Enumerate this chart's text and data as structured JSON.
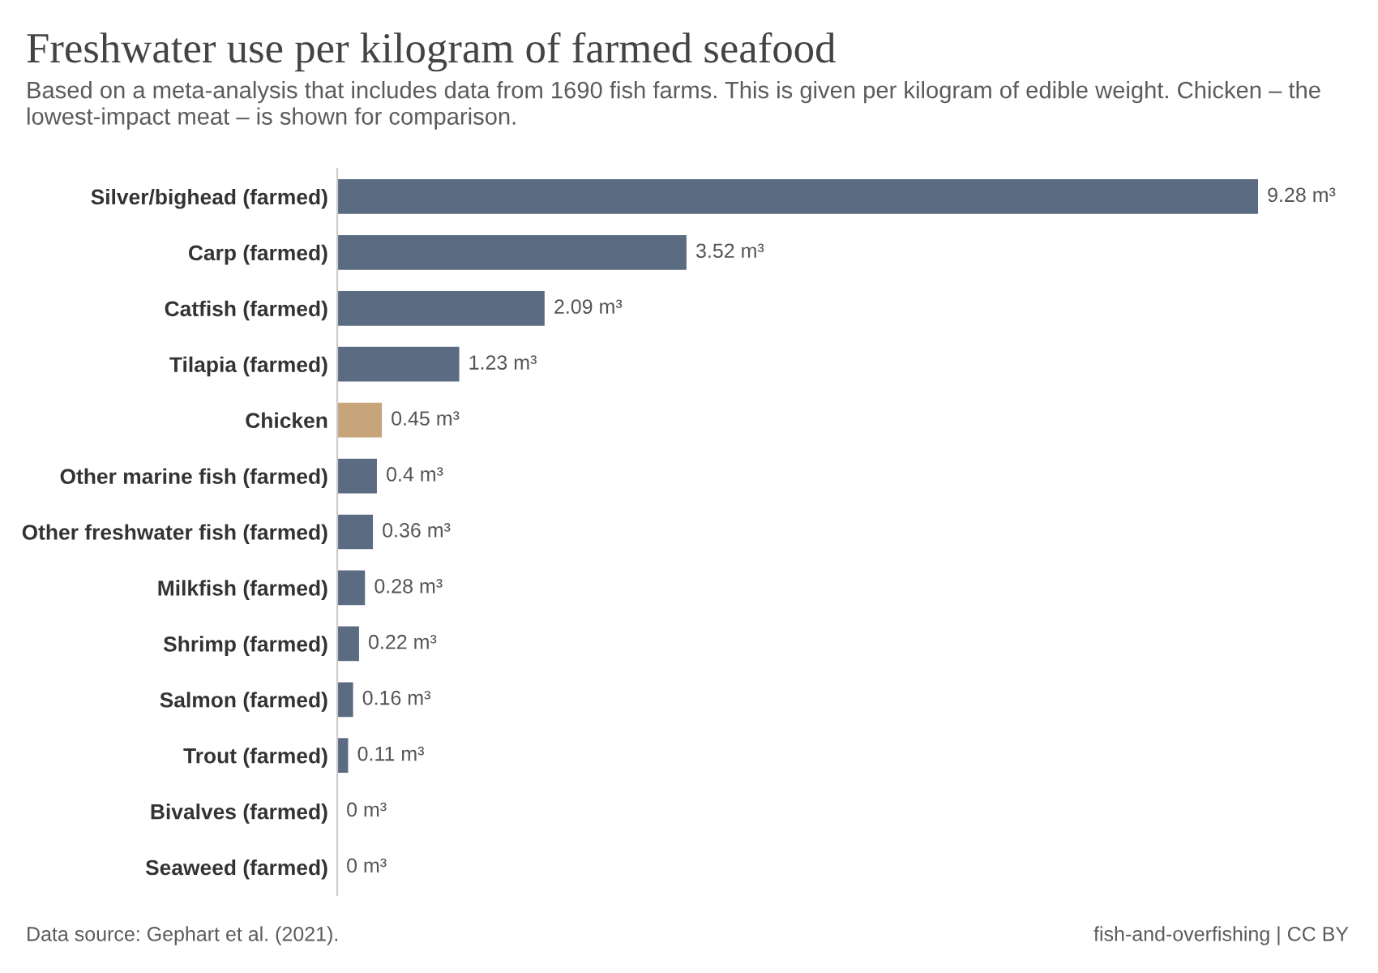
{
  "chart_data": {
    "type": "bar",
    "orientation": "horizontal",
    "title": "Freshwater use per kilogram of farmed seafood",
    "subtitle": "Based on a meta-analysis that includes data from 1690 fish farms. This is given per kilogram of edible weight. Chicken – the lowest-impact meat – is shown for comparison.",
    "categories": [
      "Silver/bighead (farmed)",
      "Carp (farmed)",
      "Catfish (farmed)",
      "Tilapia (farmed)",
      "Chicken",
      "Other marine fish (farmed)",
      "Other freshwater fish (farmed)",
      "Milkfish (farmed)",
      "Shrimp (farmed)",
      "Salmon (farmed)",
      "Trout (farmed)",
      "Bivalves (farmed)",
      "Seaweed (farmed)"
    ],
    "values": [
      9.28,
      3.52,
      2.09,
      1.23,
      0.45,
      0.4,
      0.36,
      0.28,
      0.22,
      0.16,
      0.11,
      0,
      0
    ],
    "value_labels": [
      "9.28 m³",
      "3.52 m³",
      "2.09 m³",
      "1.23 m³",
      "0.45 m³",
      "0.4 m³",
      "0.36 m³",
      "0.28 m³",
      "0.22 m³",
      "0.16 m³",
      "0.11 m³",
      "0 m³",
      "0 m³"
    ],
    "colors": [
      "#5b6b82",
      "#5b6b82",
      "#5b6b82",
      "#5b6b82",
      "#c8a47a",
      "#5b6b82",
      "#5b6b82",
      "#5b6b82",
      "#5b6b82",
      "#5b6b82",
      "#5b6b82",
      "#5b6b82",
      "#5b6b82"
    ],
    "grid": false,
    "legend": false,
    "annotations": [
      "Data source: Gephart et al. (2021).",
      "fish-and-overfishing | CC BY"
    ]
  }
}
